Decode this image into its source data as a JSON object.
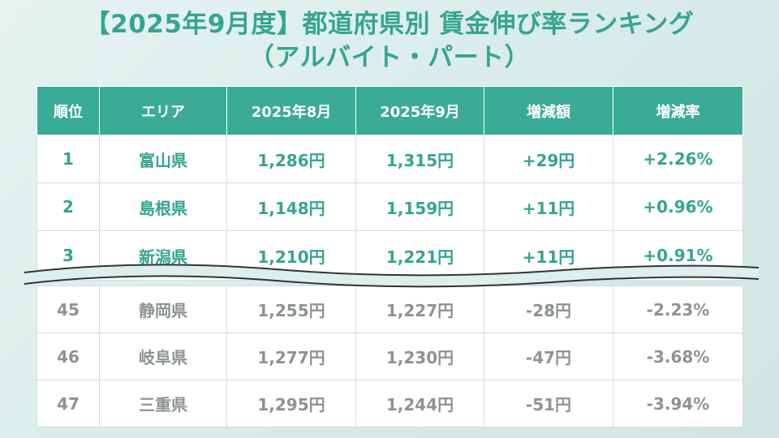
{
  "title": {
    "line1": "【2025年9月度】都道府県別 賃金伸び率ランキング",
    "line2": "（アルバイト・パート）"
  },
  "table": {
    "headers": [
      "順位",
      "エリア",
      "2025年8月",
      "2025年9月",
      "増減額",
      "増減率"
    ],
    "top_rows": [
      [
        "1",
        "富山県",
        "1,286円",
        "1,315円",
        "+29円",
        "+2.26%"
      ],
      [
        "2",
        "島根県",
        "1,148円",
        "1,159円",
        "+11円",
        "+0.96%"
      ],
      [
        "3",
        "新潟県",
        "1,210円",
        "1,221円",
        "+11円",
        "+0.91%"
      ]
    ],
    "bottom_rows": [
      [
        "45",
        "静岡県",
        "1,255円",
        "1,227円",
        "-28円",
        "-2.23%"
      ],
      [
        "46",
        "岐阜県",
        "1,277円",
        "1,230円",
        "-47円",
        "-3.68%"
      ],
      [
        "47",
        "三重県",
        "1,295円",
        "1,244円",
        "-51円",
        "-3.94%"
      ]
    ]
  },
  "colors": {
    "accent": "#3aab96",
    "title_text": "#35a58f",
    "top_rank_text": "#35a58f",
    "bottom_rank_text": "#8d9393",
    "background": "#d7ebe8"
  }
}
